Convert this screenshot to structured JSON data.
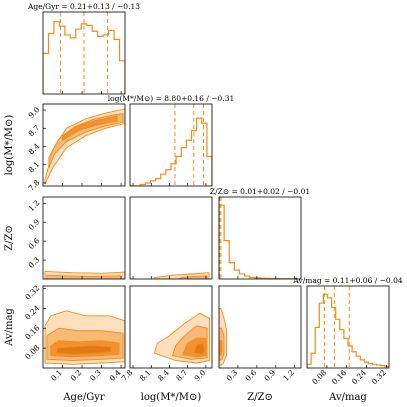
{
  "colors": {
    "accent": "#f28c1a",
    "light_fill": "#fcd9b0",
    "mid_fill": "#f7b36a",
    "dark_fill": "#f08a24"
  },
  "chart_data": {
    "type": "corner",
    "parameters": [
      {
        "key": "age",
        "axis_label": "Age/Gyr",
        "title": "Age/Gyr = 0.21^{+0.13}_{−0.13}",
        "range": [
          0,
          0.42
        ],
        "ticks": [
          0.1,
          0.2,
          0.3,
          0.4
        ],
        "tick_labels": [
          "0.1",
          "0.2",
          "0.3",
          "0.4"
        ],
        "quantiles": [
          0.09,
          0.21,
          0.33
        ],
        "hist": [
          0.55,
          0.82,
          0.98,
          0.92,
          0.8,
          0.76,
          0.88,
          0.95,
          0.93,
          0.85,
          0.78,
          0.8,
          0.86,
          0.74,
          0.45
        ]
      },
      {
        "key": "logm",
        "axis_label": "log(M*/M⊙)",
        "title": "log(M*/M⊙) = 8.80^{+0.16}_{−0.31}",
        "range": [
          7.75,
          9.1
        ],
        "ticks": [
          7.8,
          8.1,
          8.4,
          8.7,
          9.0
        ],
        "tick_labels": [
          "7.8",
          "8.1",
          "8.4",
          "8.7",
          "9.0"
        ],
        "quantiles": [
          8.49,
          8.8,
          8.96
        ],
        "hist": [
          0.0,
          0.0,
          0.02,
          0.04,
          0.07,
          0.1,
          0.16,
          0.22,
          0.3,
          0.4,
          0.52,
          0.62,
          0.75,
          0.92,
          0.85,
          0.4
        ]
      },
      {
        "key": "z",
        "axis_label": "Z/Z⊙",
        "title": "Z/Z⊙ = 0.01^{+0.02}_{−0.01}",
        "range": [
          0,
          1.3
        ],
        "ticks": [
          0.3,
          0.6,
          0.9,
          1.2
        ],
        "tick_labels": [
          "0.3",
          "0.6",
          "0.9",
          "1.2"
        ],
        "quantiles": [
          0.0,
          0.01,
          0.03
        ],
        "hist": [
          1.0,
          0.52,
          0.22,
          0.12,
          0.07,
          0.04,
          0.02,
          0.015,
          0.01,
          0.008,
          0.006,
          0.005,
          0.004,
          0.003,
          0.002,
          0.0
        ]
      },
      {
        "key": "av",
        "axis_label": "Av/mag",
        "title": "Av/mag = 0.11^{+0.06}_{−0.04}",
        "range": [
          0.0,
          0.33
        ],
        "ticks": [
          0.08,
          0.16,
          0.24,
          0.32
        ],
        "tick_labels": [
          "0.08",
          "0.16",
          "0.24",
          "0.32"
        ],
        "quantiles": [
          0.07,
          0.11,
          0.17
        ],
        "hist": [
          0.05,
          0.2,
          0.55,
          0.88,
          1.0,
          0.95,
          0.82,
          0.66,
          0.52,
          0.4,
          0.3,
          0.22,
          0.16,
          0.11,
          0.08,
          0.06,
          0.05,
          0.04,
          0.03,
          0.02
        ]
      }
    ],
    "contours": [
      {
        "row": 1,
        "col": 0,
        "shape": "band",
        "levels": [
          {
            "points": [
              [
                0.01,
                7.85
              ],
              [
                0.05,
                8.35
              ],
              [
                0.12,
                8.7
              ],
              [
                0.22,
                8.86
              ],
              [
                0.32,
                8.95
              ],
              [
                0.42,
                9.02
              ],
              [
                0.42,
                8.78
              ],
              [
                0.32,
                8.7
              ],
              [
                0.22,
                8.58
              ],
              [
                0.12,
                8.38
              ],
              [
                0.05,
                8.05
              ],
              [
                0.01,
                7.78
              ]
            ]
          },
          {
            "points": [
              [
                0.03,
                8.22
              ],
              [
                0.08,
                8.52
              ],
              [
                0.16,
                8.72
              ],
              [
                0.26,
                8.85
              ],
              [
                0.36,
                8.92
              ],
              [
                0.41,
                8.94
              ],
              [
                0.41,
                8.8
              ],
              [
                0.32,
                8.74
              ],
              [
                0.22,
                8.64
              ],
              [
                0.12,
                8.48
              ],
              [
                0.06,
                8.28
              ],
              [
                0.03,
                8.05
              ]
            ]
          },
          {
            "points": [
              [
                0.1,
                8.58
              ],
              [
                0.18,
                8.74
              ],
              [
                0.28,
                8.84
              ],
              [
                0.38,
                8.9
              ],
              [
                0.38,
                8.82
              ],
              [
                0.28,
                8.76
              ],
              [
                0.18,
                8.66
              ],
              [
                0.1,
                8.5
              ]
            ]
          }
        ]
      },
      {
        "row": 2,
        "col": 0,
        "shape": "flat",
        "levels": [
          {
            "points": [
              [
                0.01,
                0.0
              ],
              [
                0.42,
                0.0
              ],
              [
                0.42,
                0.11
              ],
              [
                0.3,
                0.09
              ],
              [
                0.15,
                0.1
              ],
              [
                0.01,
                0.12
              ]
            ]
          },
          {
            "points": [
              [
                0.02,
                0.0
              ],
              [
                0.4,
                0.0
              ],
              [
                0.4,
                0.05
              ],
              [
                0.25,
                0.04
              ],
              [
                0.1,
                0.05
              ],
              [
                0.02,
                0.06
              ]
            ]
          }
        ]
      },
      {
        "row": 2,
        "col": 1,
        "shape": "flat",
        "levels": [
          {
            "points": [
              [
                8.15,
                0.0
              ],
              [
                9.05,
                0.0
              ],
              [
                9.05,
                0.1
              ],
              [
                8.75,
                0.08
              ],
              [
                8.45,
                0.06
              ],
              [
                8.15,
                0.02
              ]
            ]
          },
          {
            "points": [
              [
                8.55,
                0.0
              ],
              [
                9.02,
                0.0
              ],
              [
                9.02,
                0.05
              ],
              [
                8.8,
                0.04
              ],
              [
                8.6,
                0.02
              ]
            ]
          }
        ]
      },
      {
        "row": 3,
        "col": 0,
        "shape": "blob",
        "levels": [
          {
            "points": [
              [
                0.01,
                0.02
              ],
              [
                0.15,
                0.015
              ],
              [
                0.3,
                0.02
              ],
              [
                0.42,
                0.025
              ],
              [
                0.42,
                0.19
              ],
              [
                0.34,
                0.21
              ],
              [
                0.22,
                0.21
              ],
              [
                0.12,
                0.23
              ],
              [
                0.04,
                0.21
              ],
              [
                0.01,
                0.17
              ]
            ]
          },
          {
            "points": [
              [
                0.02,
                0.035
              ],
              [
                0.15,
                0.03
              ],
              [
                0.3,
                0.035
              ],
              [
                0.41,
                0.04
              ],
              [
                0.41,
                0.14
              ],
              [
                0.3,
                0.15
              ],
              [
                0.18,
                0.15
              ],
              [
                0.08,
                0.16
              ],
              [
                0.02,
                0.13
              ]
            ]
          },
          {
            "points": [
              [
                0.04,
                0.05
              ],
              [
                0.15,
                0.045
              ],
              [
                0.3,
                0.05
              ],
              [
                0.39,
                0.055
              ],
              [
                0.39,
                0.1
              ],
              [
                0.3,
                0.11
              ],
              [
                0.18,
                0.105
              ],
              [
                0.08,
                0.11
              ],
              [
                0.04,
                0.09
              ]
            ]
          },
          {
            "points": [
              [
                0.07,
                0.06
              ],
              [
                0.16,
                0.055
              ],
              [
                0.28,
                0.06
              ],
              [
                0.35,
                0.065
              ],
              [
                0.35,
                0.085
              ],
              [
                0.25,
                0.09
              ],
              [
                0.14,
                0.085
              ],
              [
                0.07,
                0.08
              ]
            ]
          }
        ]
      },
      {
        "row": 3,
        "col": 1,
        "shape": "blob",
        "levels": [
          {
            "points": [
              [
                8.15,
                0.06
              ],
              [
                8.5,
                0.03
              ],
              [
                8.85,
                0.02
              ],
              [
                9.06,
                0.03
              ],
              [
                9.06,
                0.2
              ],
              [
                8.9,
                0.22
              ],
              [
                8.65,
                0.18
              ],
              [
                8.4,
                0.13
              ],
              [
                8.2,
                0.1
              ]
            ]
          },
          {
            "points": [
              [
                8.45,
                0.05
              ],
              [
                8.75,
                0.035
              ],
              [
                9.02,
                0.04
              ],
              [
                9.02,
                0.16
              ],
              [
                8.85,
                0.17
              ],
              [
                8.65,
                0.13
              ],
              [
                8.5,
                0.09
              ]
            ]
          },
          {
            "points": [
              [
                8.62,
                0.055
              ],
              [
                8.85,
                0.045
              ],
              [
                9.0,
                0.05
              ],
              [
                9.0,
                0.12
              ],
              [
                8.85,
                0.12
              ],
              [
                8.7,
                0.1
              ]
            ]
          },
          {
            "points": [
              [
                8.8,
                0.06
              ],
              [
                8.95,
                0.055
              ],
              [
                8.98,
                0.07
              ],
              [
                8.95,
                0.1
              ],
              [
                8.85,
                0.095
              ]
            ]
          }
        ]
      },
      {
        "row": 3,
        "col": 2,
        "shape": "blob",
        "levels": [
          {
            "points": [
              [
                0.0,
                0.01
              ],
              [
                0.06,
                0.015
              ],
              [
                0.12,
                0.05
              ],
              [
                0.12,
                0.15
              ],
              [
                0.08,
                0.2
              ],
              [
                0.03,
                0.24
              ],
              [
                0.0,
                0.24
              ]
            ]
          },
          {
            "points": [
              [
                0.0,
                0.03
              ],
              [
                0.05,
                0.035
              ],
              [
                0.08,
                0.06
              ],
              [
                0.08,
                0.13
              ],
              [
                0.04,
                0.16
              ],
              [
                0.0,
                0.16
              ]
            ]
          },
          {
            "points": [
              [
                0.0,
                0.05
              ],
              [
                0.03,
                0.055
              ],
              [
                0.05,
                0.07
              ],
              [
                0.04,
                0.11
              ],
              [
                0.0,
                0.11
              ]
            ]
          }
        ]
      }
    ],
    "ylim_overrides": {
      "1": [
        7.75,
        9.1
      ],
      "2": [
        0,
        1.3
      ],
      "3": [
        0.0,
        0.33
      ]
    },
    "grid": false
  }
}
